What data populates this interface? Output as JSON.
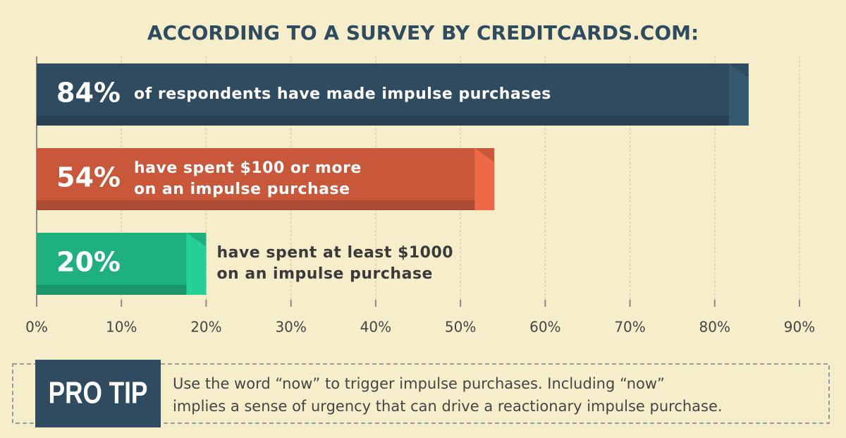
{
  "chart_data": {
    "type": "bar",
    "orientation": "horizontal",
    "title": "ACCORDING TO A SURVEY BY CREDITCARDS.COM:",
    "values": [
      84,
      54,
      20
    ],
    "value_labels": [
      "84%",
      "54%",
      "20%"
    ],
    "descriptions": [
      [
        "of respondents have made impulse purchases"
      ],
      [
        "have spent $100 or more",
        "on an impulse purchase"
      ],
      [
        "have spent at least $1000",
        "on an impulse purchase"
      ]
    ],
    "colors": [
      "#2f4b5f",
      "#c9583b",
      "#1fb07f"
    ],
    "xlim": [
      0,
      90
    ],
    "xticks": [
      {
        "value": 0,
        "label": "0%"
      },
      {
        "value": 10,
        "label": "10%"
      },
      {
        "value": 20,
        "label": "20%"
      },
      {
        "value": 30,
        "label": "30%"
      },
      {
        "value": 40,
        "label": "40%"
      },
      {
        "value": 50,
        "label": "50%"
      },
      {
        "value": 60,
        "label": "60%"
      },
      {
        "value": 70,
        "label": "70%"
      },
      {
        "value": 80,
        "label": "80%"
      },
      {
        "value": 90,
        "label": "90%"
      }
    ],
    "grid": true
  },
  "pro_tip": {
    "label": "PRO TIP",
    "lines": [
      "Use the word “now” to trigger impulse purchases. Including “now”",
      "implies a sense of urgency that can drive a reactionary impulse purchase."
    ]
  }
}
